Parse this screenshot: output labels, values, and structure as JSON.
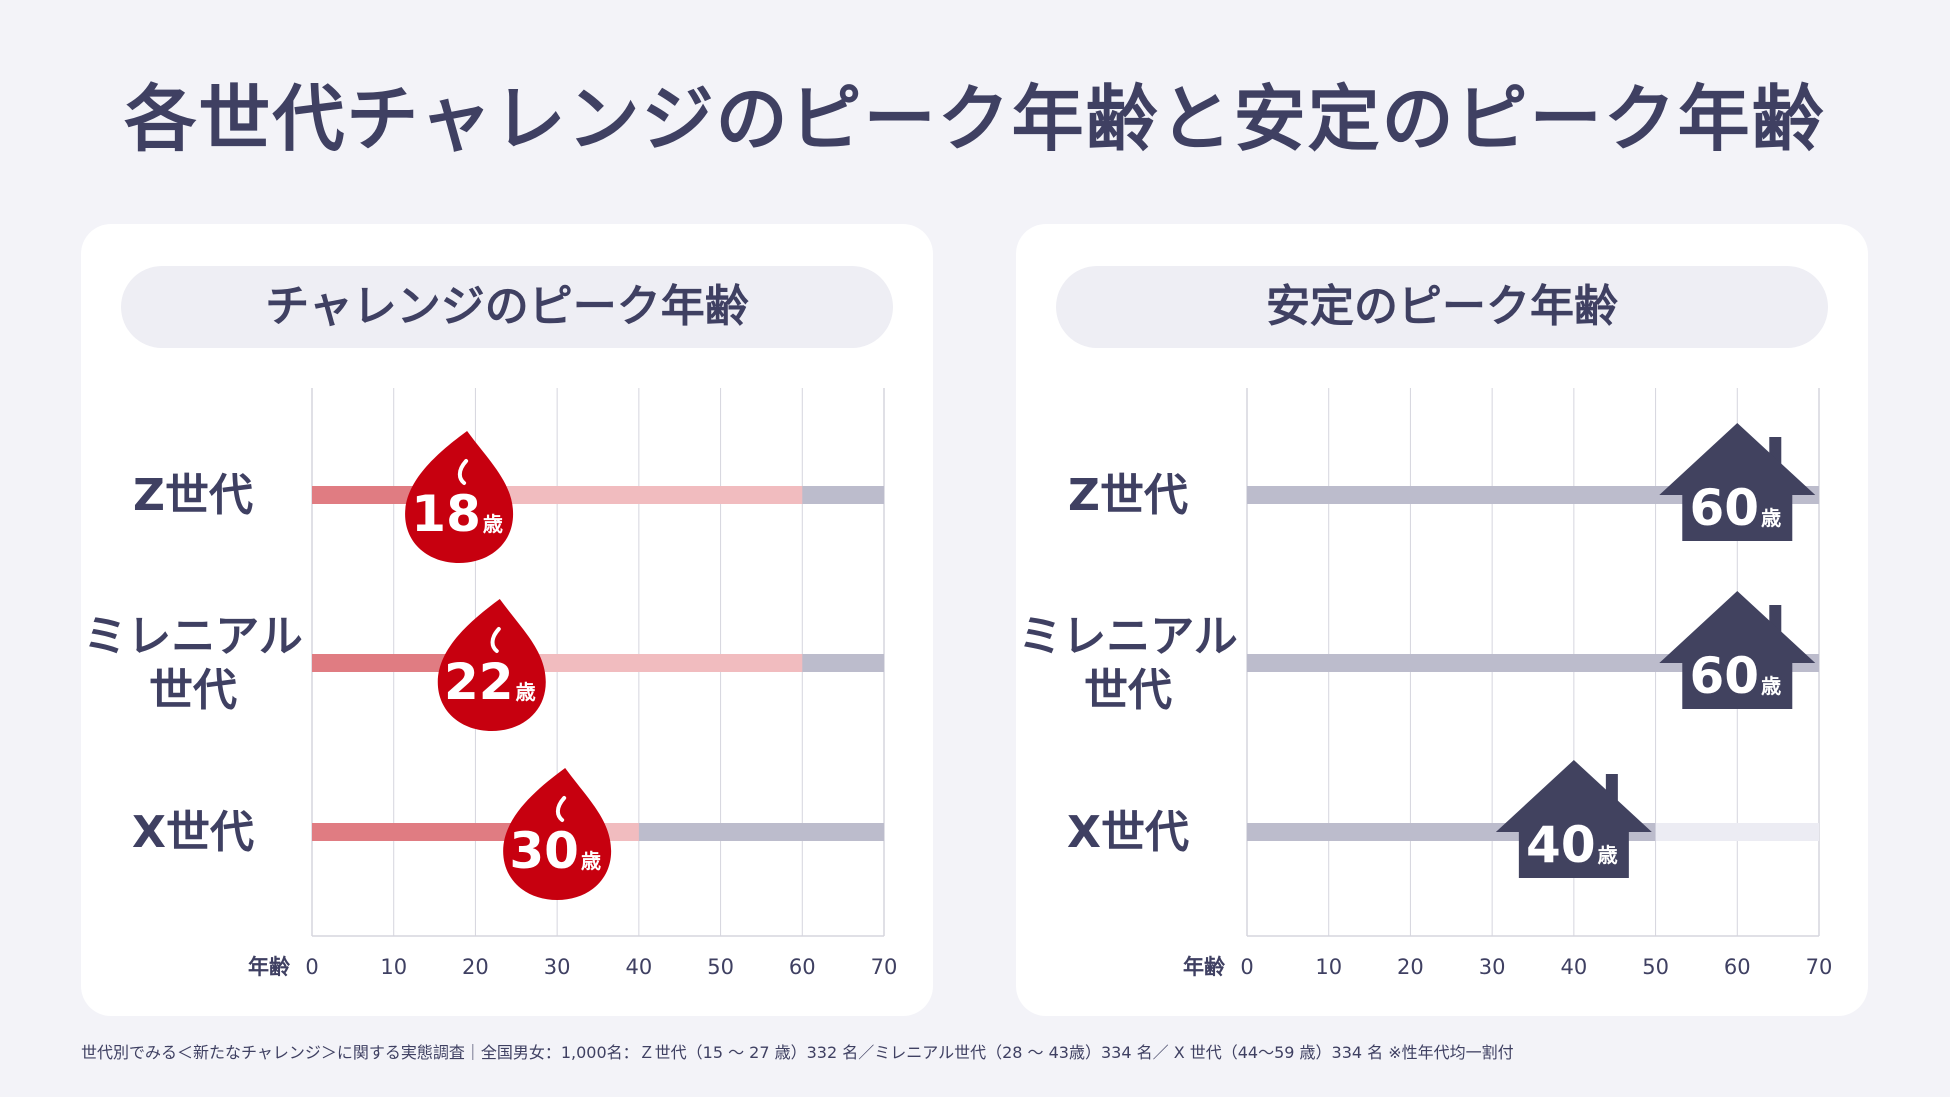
{
  "title": "各世代チャレンジのピーク年齢と安定のピーク年齢",
  "colors": {
    "challenge_red": "#c7000f",
    "challenge_bar": "#e07c82",
    "challenge_bar_light": "#f1bcbf",
    "stable_navy": "#41425f",
    "gray_bar": "#bcbccc",
    "light_bar": "#ececf3"
  },
  "footnote": "世代別でみる＜新たなチャレンジ＞に関する実態調査｜全国男女：1,000名：Ｚ世代（15 ～ 27 歳）332 名／ミレニアル世代（28 ～ 43歳）334 名／ X 世代（44～59 歳）334 名 ※性年代均一割付",
  "chart_data": [
    {
      "type": "bar",
      "title": "チャレンジのピーク年齢",
      "icon": "flame-icon",
      "xlabel": "年齢",
      "ylabel": "",
      "xlim": [
        0,
        70
      ],
      "ticks": [
        0,
        10,
        20,
        30,
        40,
        50,
        60,
        70
      ],
      "tick_labels": [
        "0",
        "10",
        "20",
        "30",
        "40",
        "50",
        "60",
        "70"
      ],
      "grid": true,
      "unit": "歳",
      "categories": [
        "Z世代",
        "ミレニアル世代",
        "X世代"
      ],
      "category_lines": [
        [
          "Z世代"
        ],
        [
          "ミレニアル",
          "世代"
        ],
        [
          "X世代"
        ]
      ],
      "values": [
        18,
        22,
        30
      ],
      "bar_ranges": [
        [
          0,
          60
        ],
        [
          0,
          60
        ],
        [
          0,
          40
        ]
      ]
    },
    {
      "type": "bar",
      "title": "安定のピーク年齢",
      "icon": "house-icon",
      "xlabel": "年齢",
      "ylabel": "",
      "xlim": [
        0,
        70
      ],
      "ticks": [
        0,
        10,
        20,
        30,
        40,
        50,
        60,
        70
      ],
      "tick_labels": [
        "0",
        "10",
        "20",
        "30",
        "40",
        "50",
        "60",
        "70"
      ],
      "grid": true,
      "unit": "歳",
      "categories": [
        "Z世代",
        "ミレニアル世代",
        "X世代"
      ],
      "category_lines": [
        [
          "Z世代"
        ],
        [
          "ミレニアル",
          "世代"
        ],
        [
          "X世代"
        ]
      ],
      "values": [
        60,
        60,
        40
      ],
      "bar_ranges": [
        [
          0,
          70
        ],
        [
          0,
          70
        ],
        [
          0,
          50
        ]
      ]
    }
  ]
}
